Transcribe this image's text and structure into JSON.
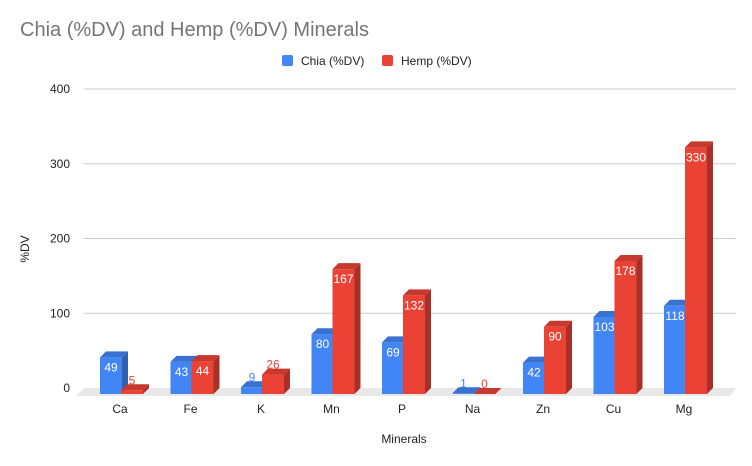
{
  "chart_data": {
    "type": "bar",
    "title": "Chia (%DV) and Hemp (%DV) Minerals",
    "xlabel": "Minerals",
    "ylabel": "%DV",
    "ylim": [
      0,
      400
    ],
    "yticks": [
      0,
      100,
      200,
      300,
      400
    ],
    "grid": true,
    "legend_position": "top-center",
    "categories": [
      "Ca",
      "Fe",
      "K",
      "Mn",
      "P",
      "Na",
      "Zn",
      "Cu",
      "Mg"
    ],
    "series": [
      {
        "name": "Chia (%DV)",
        "color": "#4285f4",
        "values": [
          49,
          43,
          9,
          80,
          69,
          1,
          42,
          103,
          118
        ]
      },
      {
        "name": "Hemp (%DV)",
        "color": "#ea4335",
        "values": [
          5,
          44,
          26,
          167,
          132,
          0,
          90,
          178,
          330
        ]
      }
    ]
  }
}
